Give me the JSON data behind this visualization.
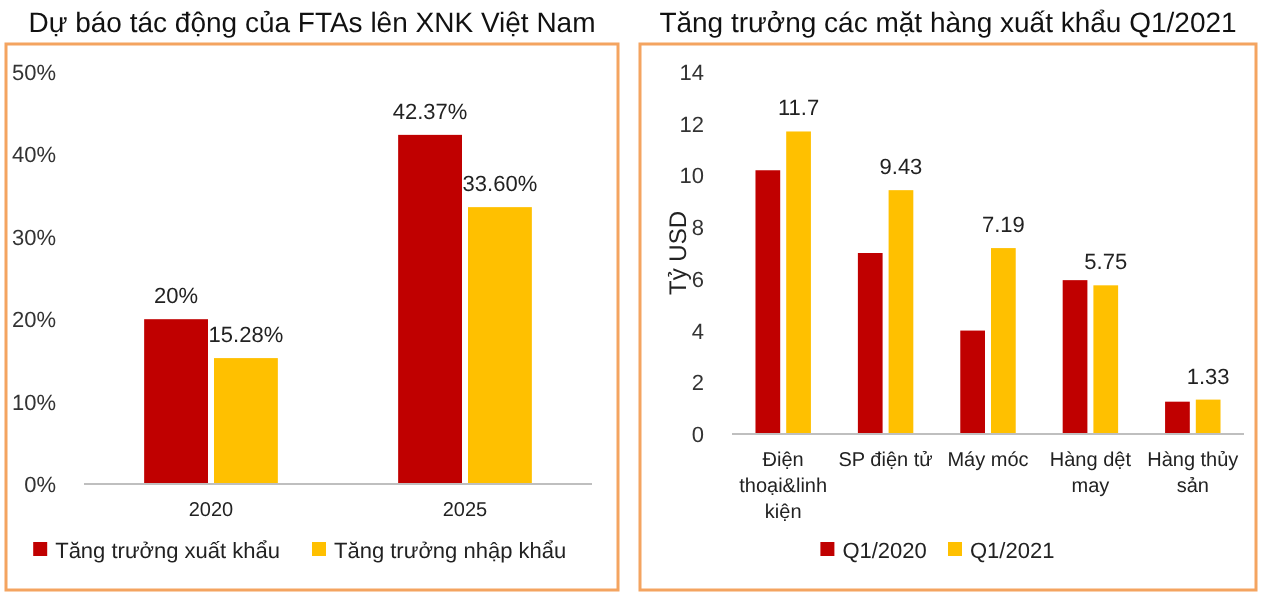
{
  "chart_data": [
    {
      "type": "bar",
      "title": "Dự báo tác động của FTAs lên XNK Việt Nam",
      "categories": [
        "2020",
        "2025"
      ],
      "series": [
        {
          "name": "Tăng trưởng xuất khẩu",
          "color": "#c00000",
          "values": [
            20,
            42.37
          ],
          "value_labels": [
            "20%",
            "42.37%"
          ]
        },
        {
          "name": "Tăng trưởng nhập khẩu",
          "color": "#ffc000",
          "values": [
            15.28,
            33.6
          ],
          "value_labels": [
            "15.28%",
            "33.60%"
          ]
        }
      ],
      "ylim": [
        0,
        50
      ],
      "yticks": [
        {
          "value": 0,
          "label": "0%"
        },
        {
          "value": 10,
          "label": "10%"
        },
        {
          "value": 20,
          "label": "20%"
        },
        {
          "value": 30,
          "label": "30%"
        },
        {
          "value": 40,
          "label": "40%"
        },
        {
          "value": 50,
          "label": "50%"
        }
      ],
      "legend": "bottom"
    },
    {
      "type": "bar",
      "title": "Tăng trưởng các mặt hàng xuất khẩu Q1/2021",
      "ylabel": "Tỷ USD",
      "categories": [
        "Điện thoại&linh kiện",
        "SP điện tử",
        "Máy móc",
        "Hàng dệt may",
        "Hàng thủy sản"
      ],
      "series": [
        {
          "name": "Q1/2020",
          "color": "#c00000",
          "values": [
            10.2,
            7.0,
            4.0,
            5.95,
            1.25
          ]
        },
        {
          "name": "Q1/2021",
          "color": "#ffc000",
          "values": [
            11.7,
            9.43,
            7.19,
            5.75,
            1.33
          ],
          "value_labels": [
            "11.7",
            "9.43",
            "7.19",
            "5.75",
            "1.33"
          ]
        }
      ],
      "ylim": [
        0,
        14
      ],
      "yticks": [
        0,
        2,
        4,
        6,
        8,
        10,
        12,
        14
      ],
      "legend": "bottom"
    }
  ]
}
